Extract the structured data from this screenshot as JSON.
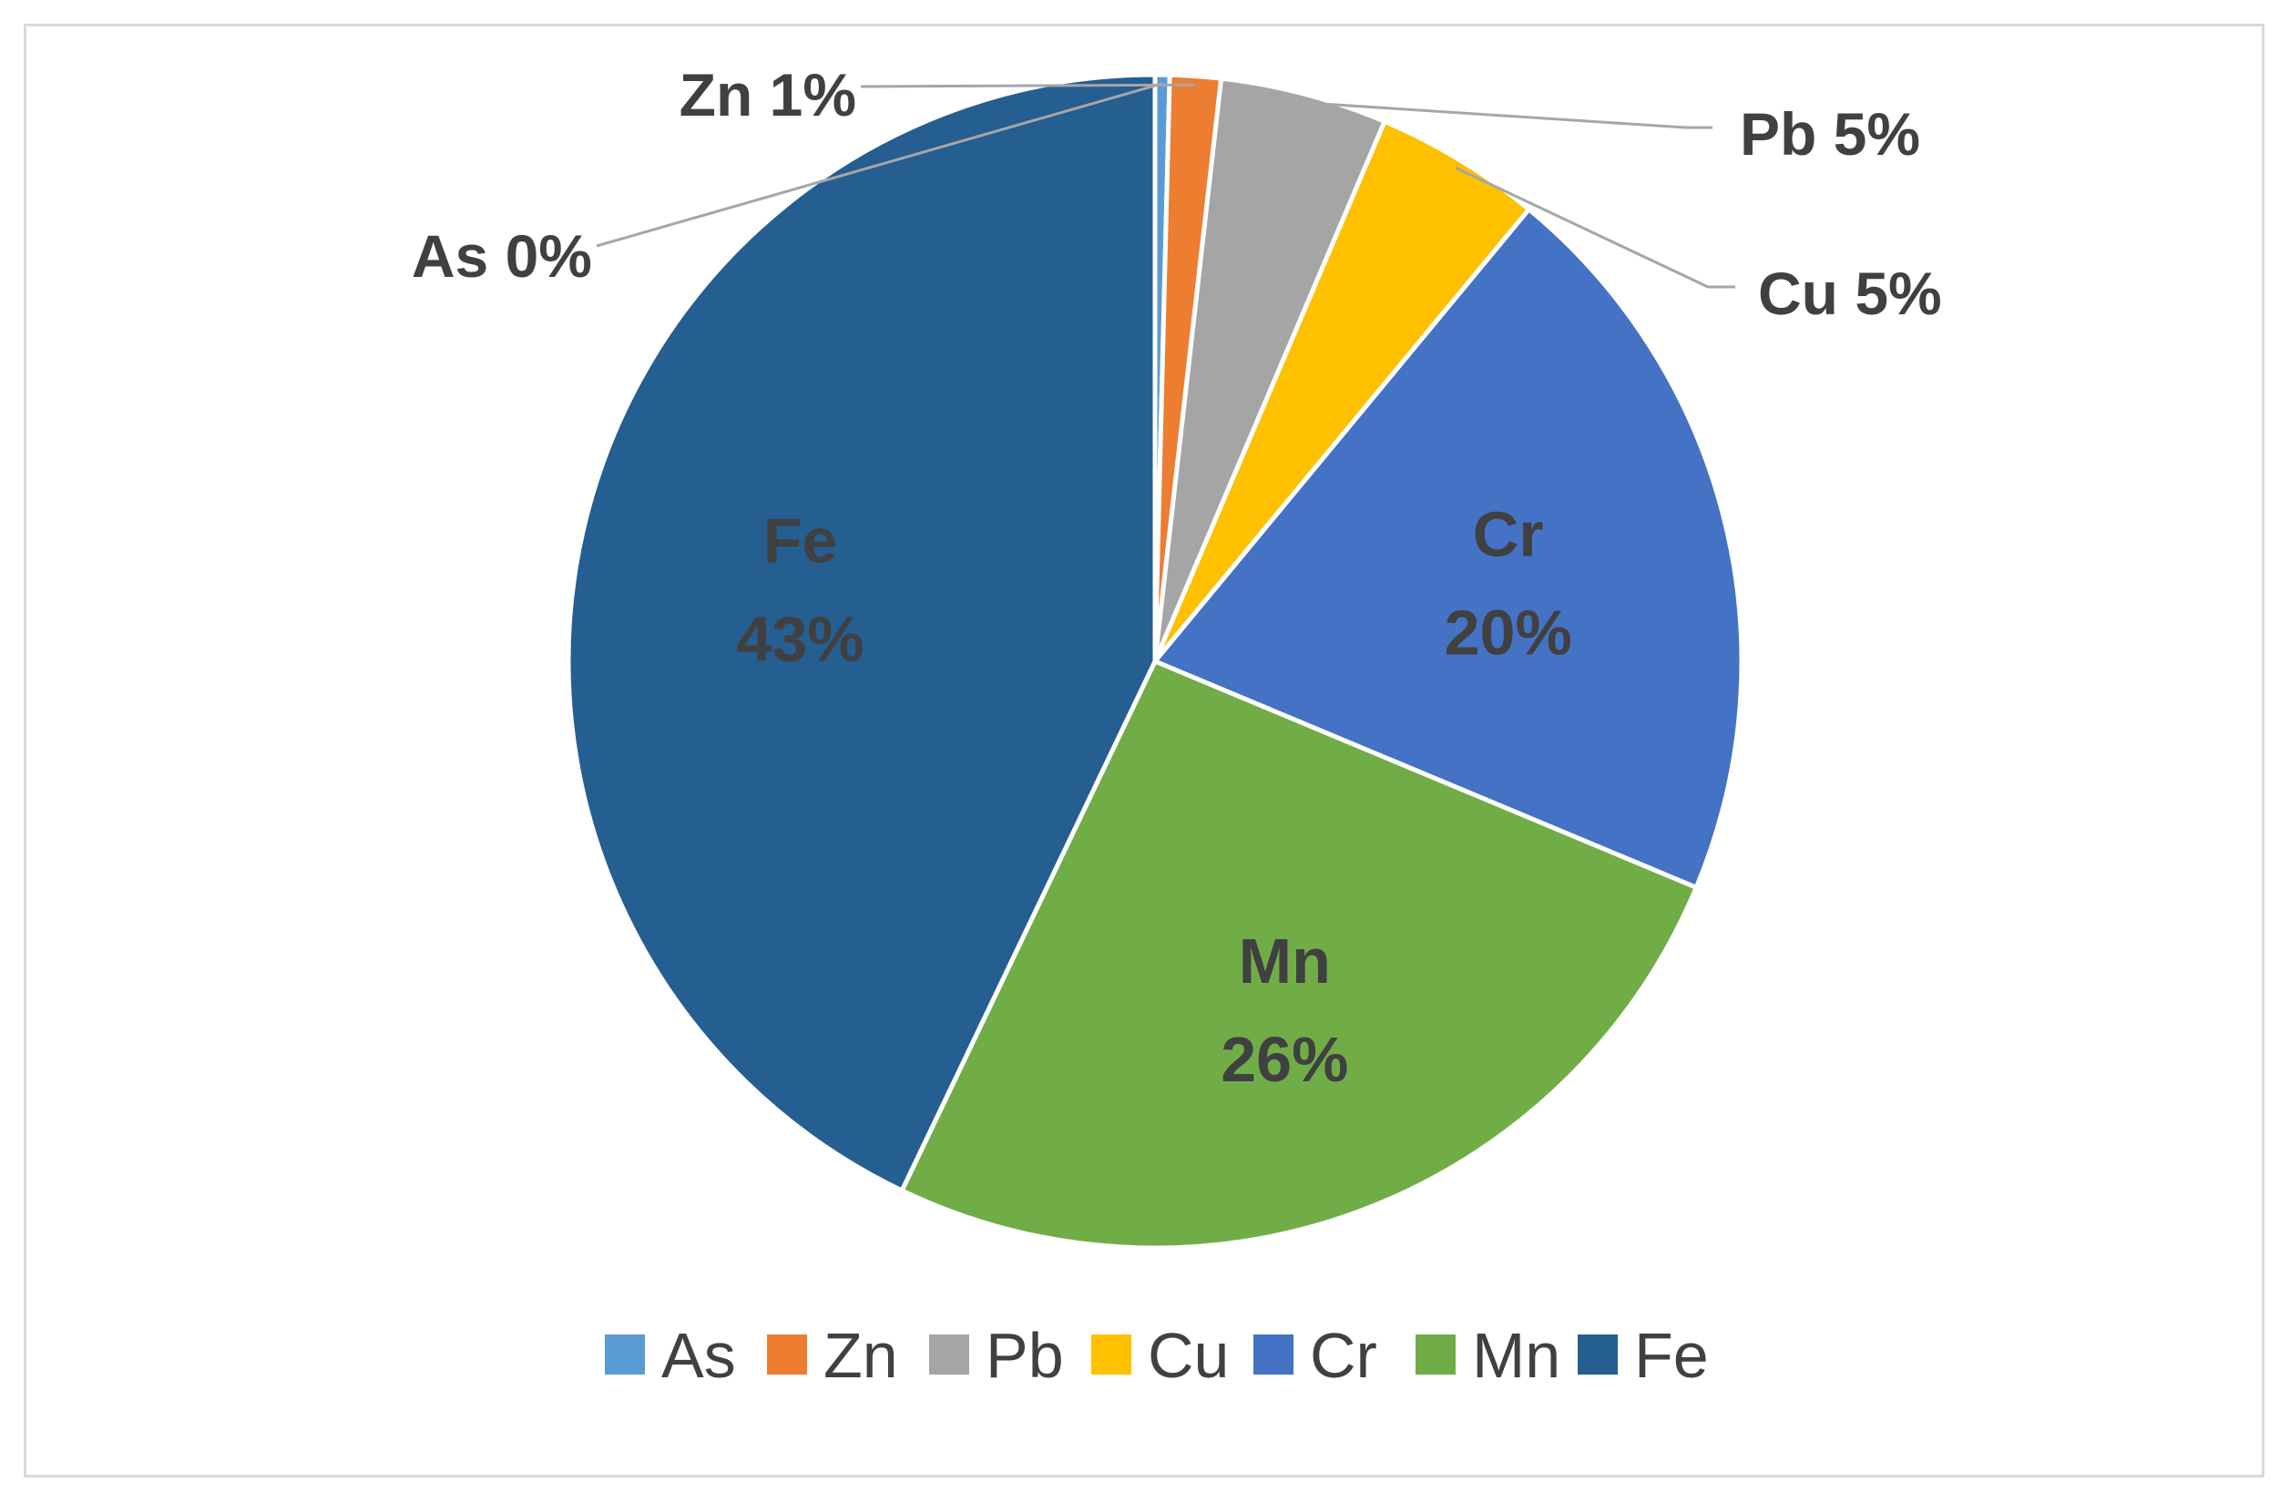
{
  "chart_data": {
    "type": "pie",
    "title": "",
    "categories": [
      "As",
      "Zn",
      "Pb",
      "Cu",
      "Cr",
      "Mn",
      "Fe"
    ],
    "values": [
      0.4,
      1.4,
      4.6,
      4.6,
      20.3,
      25.8,
      42.9
    ],
    "data_labels": [
      "As 0%",
      "Zn 1%",
      "Pb 5%",
      "Cu 5%",
      "Cr 20%",
      "Mn 26%",
      "Fe 43%"
    ],
    "colors": [
      "#5b9bd5",
      "#ed7d31",
      "#a5a5a5",
      "#ffc000",
      "#4472c4",
      "#70ad47",
      "#255e91"
    ],
    "legend_position": "bottom",
    "label_style": {
      "As": "outside",
      "Zn": "outside",
      "Pb": "outside",
      "Cu": "outside",
      "Cr": "inside",
      "Mn": "inside",
      "Fe": "inside"
    }
  }
}
